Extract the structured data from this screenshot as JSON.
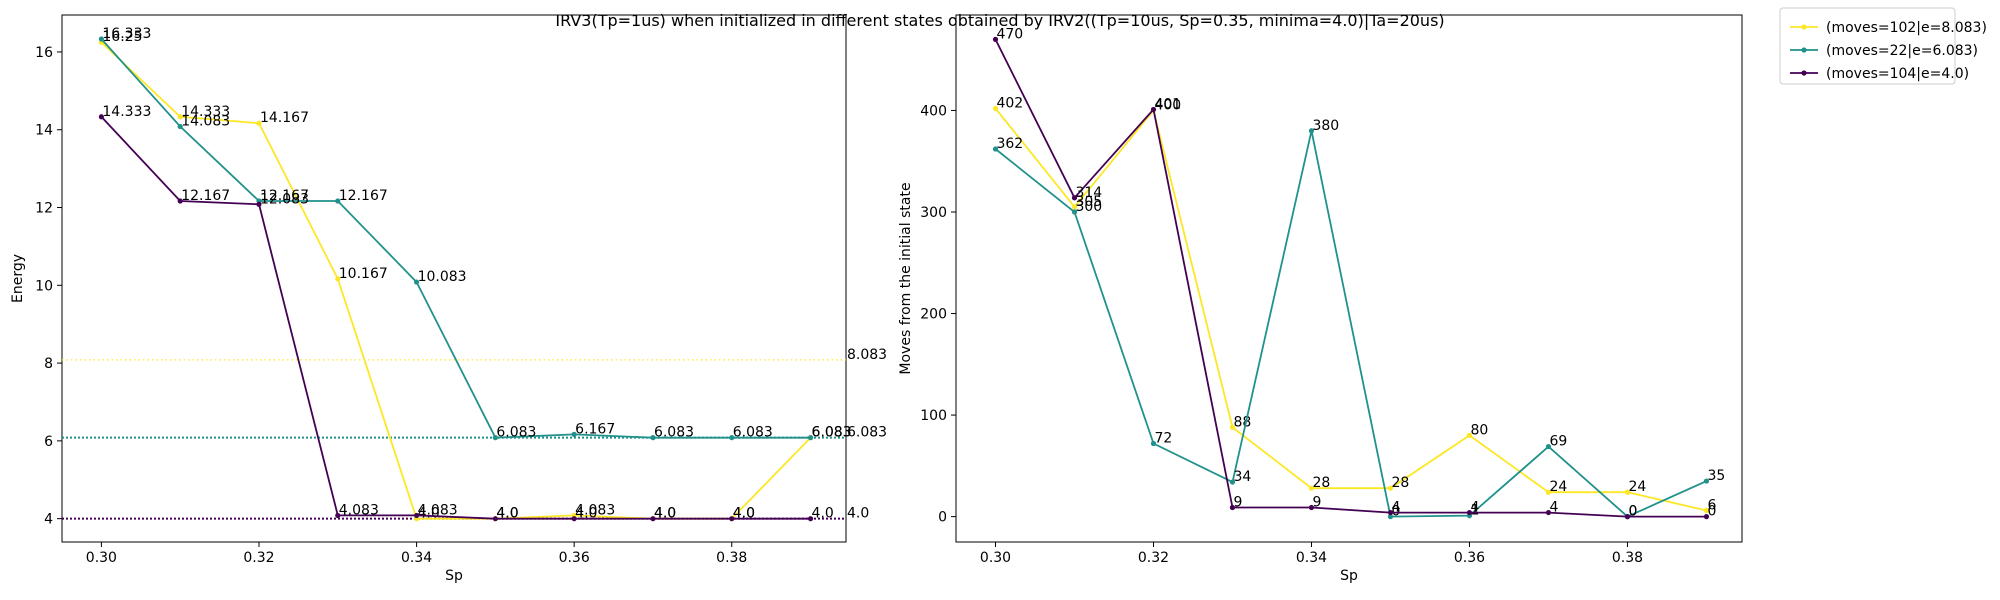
{
  "chart_data": [
    {
      "type": "line",
      "title": "IRV3(Tp=1us) when initialized in different states obtained by IRV2((Tp=10us, Sp=0.35, minima=4.0)|Ta=20us)",
      "xlabel": "Sp",
      "ylabel": "Energy",
      "x": [
        0.3,
        0.31,
        0.32,
        0.33,
        0.34,
        0.35,
        0.36,
        0.37,
        0.38,
        0.39
      ],
      "xlim": [
        0.295,
        0.3945
      ],
      "ylim": [
        3.4,
        16.95
      ],
      "xticks": [
        "0.30",
        "0.32",
        "0.34",
        "0.36",
        "0.38"
      ],
      "yticks": [
        "4",
        "6",
        "8",
        "10",
        "12",
        "14",
        "16"
      ],
      "grid": false,
      "series": [
        {
          "name": "(moves=102|e=8.083)",
          "color": "#fde725",
          "values": [
            16.25,
            14.333,
            14.167,
            10.167,
            4.0,
            4.0,
            4.083,
            4.0,
            4.0,
            6.083
          ],
          "labels": [
            "16.25",
            "14.333",
            "14.167",
            "10.167",
            "4.0",
            "4.0",
            "4.083",
            "4.0",
            "4.0",
            "6.083"
          ]
        },
        {
          "name": "(moves=22|e=6.083)",
          "color": "#21918c",
          "values": [
            16.333,
            14.083,
            12.167,
            12.167,
            10.083,
            6.083,
            6.167,
            6.083,
            6.083,
            6.083
          ],
          "labels": [
            "16.333",
            "14.083",
            "12.167",
            "12.167",
            "10.083",
            "6.083",
            "6.167",
            "6.083",
            "6.083",
            "6.083"
          ]
        },
        {
          "name": "(moves=104|e=4.0)",
          "color": "#440154",
          "values": [
            14.333,
            12.167,
            12.083,
            4.083,
            4.083,
            4.0,
            4.0,
            4.0,
            4.0,
            4.0
          ],
          "labels": [
            "14.333",
            "12.167",
            "12.083",
            "4.083",
            "4.083",
            "4.0",
            "4.0",
            "4.0",
            "4.0",
            "4.0"
          ]
        }
      ],
      "hlines": [
        {
          "value": 8.083,
          "label": "8.083",
          "color": "#fde725"
        },
        {
          "value": 6.083,
          "label": "6.083",
          "color": "#21918c"
        },
        {
          "value": 4.0,
          "label": "4.0",
          "color": "#440154"
        }
      ]
    },
    {
      "type": "line",
      "xlabel": "Sp",
      "ylabel": "Moves from the initial state",
      "x": [
        0.3,
        0.31,
        0.32,
        0.33,
        0.34,
        0.35,
        0.36,
        0.37,
        0.38,
        0.39
      ],
      "xlim": [
        0.295,
        0.3945
      ],
      "ylim": [
        -25,
        494
      ],
      "xticks": [
        "0.30",
        "0.32",
        "0.34",
        "0.36",
        "0.38"
      ],
      "yticks": [
        "0",
        "100",
        "200",
        "300",
        "400"
      ],
      "grid": false,
      "series": [
        {
          "color": "#fde725",
          "values": [
            402,
            305,
            400,
            88,
            28,
            28,
            80,
            24,
            24,
            6
          ]
        },
        {
          "color": "#21918c",
          "values": [
            362,
            300,
            72,
            34,
            380,
            0,
            1,
            69,
            0,
            35
          ]
        },
        {
          "color": "#440154",
          "values": [
            470,
            314,
            401,
            9,
            9,
            4,
            4,
            4,
            0,
            0
          ]
        }
      ]
    }
  ],
  "legend": {
    "placement": "outside upper right",
    "entries": [
      "(moves=102|e=8.083)",
      "(moves=22|e=6.083)",
      "(moves=104|e=4.0)"
    ]
  }
}
